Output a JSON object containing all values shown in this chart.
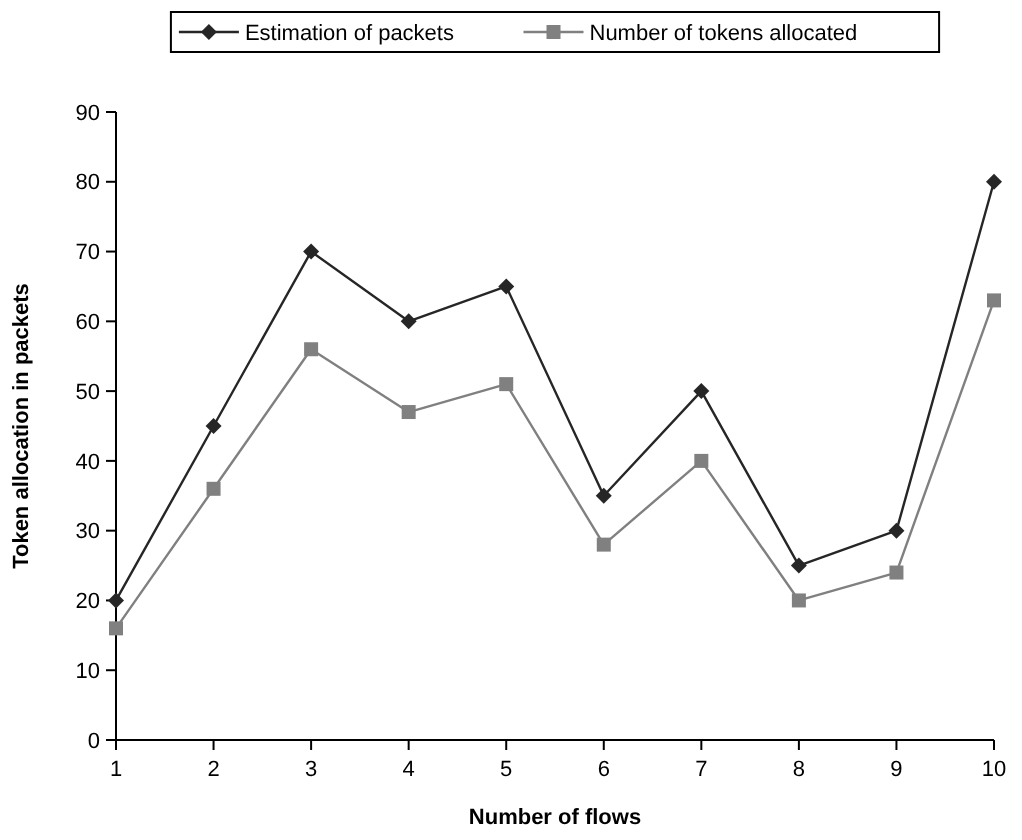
{
  "chart_data": {
    "type": "line",
    "xlabel": "Number of flows",
    "ylabel": "Token allocation in packets",
    "x": [
      1,
      2,
      3,
      4,
      5,
      6,
      7,
      8,
      9,
      10
    ],
    "xlim": [
      1,
      10
    ],
    "xticks": [
      1,
      2,
      3,
      4,
      5,
      6,
      7,
      8,
      9,
      10
    ],
    "ylim": [
      0,
      90
    ],
    "yticks": [
      0,
      10,
      20,
      30,
      40,
      50,
      60,
      70,
      80,
      90
    ],
    "grid": false,
    "legend": "top",
    "series": [
      {
        "name": "Estimation of packets",
        "color": "#262626",
        "marker": "diamond",
        "values": [
          20,
          45,
          70,
          60,
          65,
          35,
          50,
          25,
          30,
          80
        ]
      },
      {
        "name": "Number of tokens allocated",
        "color": "#808080",
        "marker": "square",
        "values": [
          16,
          36,
          56,
          47,
          51,
          28,
          40,
          20,
          24,
          63
        ]
      }
    ]
  }
}
